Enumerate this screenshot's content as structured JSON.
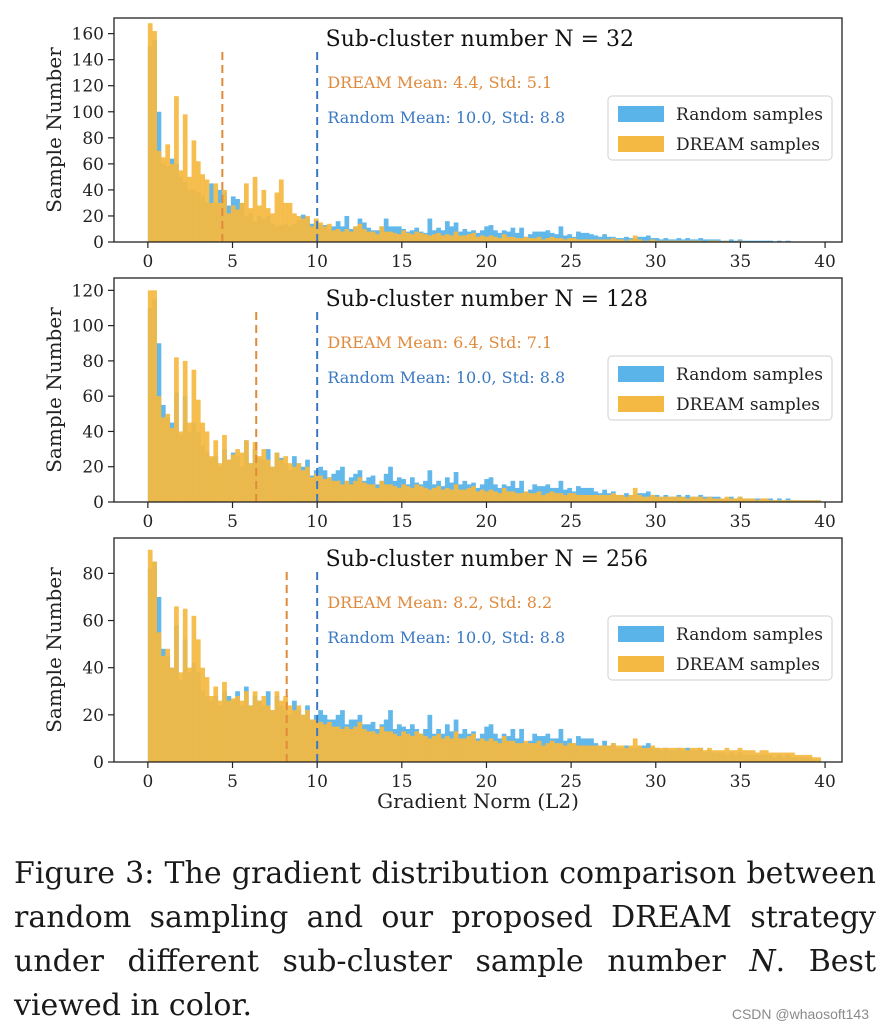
{
  "chart_data": [
    {
      "type": "bar",
      "title": "Sub-cluster number N = 32",
      "ylabel": "Sample Number",
      "xlabel": "",
      "xlim": [
        -2,
        41
      ],
      "ylim": [
        0,
        172
      ],
      "yticks": [
        0,
        20,
        40,
        60,
        80,
        100,
        120,
        140,
        160
      ],
      "xticks": [
        0,
        5,
        10,
        15,
        20,
        25,
        30,
        35,
        40
      ],
      "legend": "right",
      "annotations": {
        "dream": "DREAM Mean: 4.4, Std: 5.1",
        "random": "Random Mean: 10.0, Std: 8.8"
      },
      "mean_lines": {
        "dream": 4.4,
        "random": 10.0
      },
      "series": [
        {
          "name": "Random samples",
          "values": [
            150,
            155,
            100,
            60,
            58,
            64,
            60,
            50,
            46,
            40,
            40,
            38,
            35,
            30,
            45,
            30,
            40,
            38,
            28,
            35,
            33,
            30,
            20,
            22,
            16,
            20,
            18,
            20,
            14,
            12,
            13,
            14,
            12,
            14,
            17,
            21,
            19,
            14,
            17,
            13,
            13,
            10,
            12,
            16,
            12,
            20,
            10,
            12,
            18,
            15,
            11,
            9,
            9,
            12,
            18,
            12,
            12,
            12,
            10,
            8,
            9,
            11,
            8,
            7,
            18,
            9,
            11,
            9,
            16,
            12,
            15,
            8,
            10,
            8,
            9,
            7,
            9,
            12,
            13,
            9,
            7,
            9,
            8,
            11,
            7,
            11,
            4,
            6,
            8,
            8,
            8,
            9,
            7,
            6,
            12,
            5,
            6,
            4,
            8,
            7,
            7,
            6,
            5,
            4,
            6,
            4,
            4,
            3,
            3,
            4,
            3,
            3,
            4,
            4,
            5,
            3,
            3,
            2,
            3,
            2,
            2,
            3,
            2,
            3,
            2,
            2,
            3,
            2,
            2,
            2,
            2,
            1,
            1,
            2,
            1,
            2,
            1,
            1,
            1,
            1,
            1,
            1,
            1,
            0,
            1,
            0,
            1,
            0,
            0,
            0,
            0,
            0,
            0,
            0,
            0
          ]
        },
        {
          "name": "DREAM samples",
          "values": [
            168,
            162,
            70,
            65,
            75,
            60,
            112,
            55,
            98,
            50,
            78,
            62,
            52,
            48,
            30,
            45,
            30,
            40,
            22,
            28,
            25,
            30,
            45,
            26,
            50,
            28,
            40,
            26,
            22,
            38,
            48,
            30,
            30,
            22,
            20,
            18,
            20,
            12,
            18,
            15,
            12,
            14,
            9,
            10,
            8,
            10,
            8,
            12,
            14,
            10,
            8,
            8,
            6,
            12,
            8,
            8,
            7,
            6,
            9,
            7,
            6,
            8,
            7,
            6,
            5,
            6,
            7,
            5,
            6,
            5,
            8,
            5,
            5,
            6,
            7,
            4,
            5,
            4,
            5,
            4,
            3,
            6,
            4,
            4,
            3,
            3,
            4,
            3,
            3,
            4,
            2,
            3,
            4,
            3,
            3,
            2,
            3,
            3,
            2,
            2,
            2,
            2,
            2,
            2,
            2,
            2,
            3,
            2,
            2,
            1,
            2,
            5,
            2,
            1,
            1,
            2,
            1,
            1,
            1,
            1,
            1,
            1,
            1,
            1,
            1,
            1,
            1,
            0,
            1,
            1,
            1,
            0,
            1,
            0,
            0,
            1,
            0,
            0,
            0,
            0,
            0,
            0,
            0,
            0,
            0,
            0,
            0,
            0,
            0,
            0,
            0,
            0,
            0,
            0,
            0
          ]
        }
      ]
    },
    {
      "type": "bar",
      "title": "Sub-cluster number N = 128",
      "ylabel": "Sample Number",
      "xlabel": "",
      "xlim": [
        -2,
        41
      ],
      "ylim": [
        0,
        127
      ],
      "yticks": [
        0,
        20,
        40,
        60,
        80,
        100,
        120
      ],
      "xticks": [
        0,
        5,
        10,
        15,
        20,
        25,
        30,
        35,
        40
      ],
      "legend": "right",
      "annotations": {
        "dream": "DREAM Mean: 6.4, Std: 7.1",
        "random": "Random Mean: 10.0, Std: 8.8"
      },
      "mean_lines": {
        "dream": 6.4,
        "random": 10.0
      },
      "series": [
        {
          "name": "Random samples",
          "values": [
            110,
            115,
            90,
            55,
            48,
            45,
            62,
            38,
            60,
            40,
            45,
            40,
            32,
            28,
            25,
            26,
            20,
            30,
            24,
            28,
            26,
            20,
            35,
            22,
            30,
            25,
            24,
            30,
            20,
            28,
            25,
            22,
            18,
            26,
            22,
            20,
            24,
            15,
            18,
            20,
            18,
            14,
            16,
            18,
            20,
            12,
            14,
            16,
            18,
            12,
            14,
            15,
            10,
            12,
            16,
            20,
            12,
            14,
            13,
            10,
            14,
            11,
            10,
            12,
            18,
            10,
            12,
            9,
            14,
            11,
            17,
            10,
            12,
            10,
            11,
            8,
            10,
            13,
            14,
            10,
            8,
            10,
            9,
            12,
            8,
            12,
            6,
            7,
            10,
            9,
            9,
            10,
            8,
            8,
            12,
            7,
            8,
            6,
            9,
            8,
            8,
            8,
            6,
            5,
            7,
            5,
            6,
            4,
            4,
            5,
            4,
            4,
            5,
            5,
            6,
            4,
            4,
            3,
            4,
            3,
            3,
            4,
            3,
            4,
            3,
            3,
            4,
            3,
            3,
            3,
            3,
            2,
            2,
            3,
            2,
            3,
            2,
            2,
            2,
            2,
            2,
            2,
            2,
            1,
            2,
            1,
            2,
            1,
            1,
            1,
            1,
            1,
            1,
            1,
            0
          ]
        },
        {
          "name": "DREAM samples",
          "values": [
            120,
            120,
            60,
            48,
            50,
            42,
            82,
            40,
            80,
            45,
            75,
            58,
            45,
            40,
            26,
            35,
            22,
            38,
            24,
            27,
            30,
            28,
            35,
            22,
            34,
            26,
            30,
            24,
            20,
            28,
            24,
            26,
            22,
            20,
            22,
            18,
            20,
            14,
            16,
            15,
            13,
            14,
            12,
            12,
            10,
            12,
            10,
            12,
            14,
            11,
            10,
            10,
            8,
            12,
            10,
            10,
            9,
            8,
            10,
            9,
            8,
            10,
            9,
            8,
            7,
            8,
            9,
            7,
            8,
            7,
            10,
            7,
            7,
            8,
            9,
            6,
            7,
            6,
            7,
            6,
            5,
            8,
            6,
            6,
            5,
            5,
            6,
            5,
            5,
            6,
            4,
            5,
            6,
            5,
            5,
            4,
            5,
            5,
            4,
            4,
            4,
            4,
            4,
            4,
            4,
            4,
            5,
            4,
            4,
            3,
            4,
            8,
            4,
            3,
            3,
            4,
            3,
            3,
            3,
            3,
            3,
            3,
            3,
            2,
            3,
            3,
            3,
            2,
            3,
            2,
            2,
            2,
            3,
            2,
            2,
            3,
            2,
            2,
            2,
            1,
            2,
            2,
            1,
            1,
            1,
            1,
            1,
            1,
            1,
            1,
            1,
            1,
            1,
            1,
            0
          ]
        }
      ]
    },
    {
      "type": "bar",
      "title": "Sub-cluster number N = 256",
      "ylabel": "Sample Number",
      "xlabel": "Gradient Norm (L2)",
      "xlim": [
        -2,
        41
      ],
      "ylim": [
        0,
        95
      ],
      "yticks": [
        0,
        20,
        40,
        60,
        80
      ],
      "xticks": [
        0,
        5,
        10,
        15,
        20,
        25,
        30,
        35,
        40
      ],
      "legend": "right",
      "annotations": {
        "dream": "DREAM Mean: 8.2, Std: 8.2",
        "random": "Random Mean: 10.0, Std: 8.8"
      },
      "mean_lines": {
        "dream": 8.2,
        "random": 10.0
      },
      "series": [
        {
          "name": "Random samples",
          "values": [
            82,
            85,
            70,
            48,
            45,
            40,
            58,
            35,
            52,
            38,
            42,
            38,
            30,
            28,
            26,
            28,
            24,
            30,
            28,
            26,
            30,
            24,
            32,
            24,
            28,
            26,
            24,
            30,
            22,
            28,
            24,
            22,
            20,
            26,
            22,
            20,
            24,
            18,
            20,
            22,
            20,
            18,
            18,
            20,
            22,
            16,
            18,
            18,
            20,
            16,
            16,
            17,
            14,
            16,
            18,
            22,
            14,
            16,
            15,
            14,
            16,
            14,
            12,
            14,
            20,
            12,
            14,
            12,
            16,
            13,
            18,
            12,
            14,
            12,
            13,
            10,
            12,
            15,
            16,
            12,
            10,
            12,
            11,
            14,
            10,
            14,
            8,
            9,
            12,
            11,
            11,
            12,
            10,
            10,
            14,
            9,
            10,
            8,
            11,
            10,
            10,
            10,
            8,
            7,
            9,
            7,
            8,
            6,
            6,
            7,
            6,
            6,
            7,
            7,
            8,
            6,
            6,
            5,
            6,
            5,
            5,
            6,
            5,
            6,
            5,
            5,
            6,
            4,
            5,
            4,
            4,
            4,
            3,
            4,
            3,
            4,
            3,
            3,
            3,
            3,
            3,
            3,
            3,
            2,
            3,
            2,
            3,
            2,
            2,
            2,
            2,
            2,
            1,
            1,
            0
          ]
        },
        {
          "name": "DREAM samples",
          "values": [
            90,
            85,
            55,
            45,
            48,
            40,
            66,
            38,
            65,
            40,
            62,
            52,
            40,
            36,
            28,
            32,
            26,
            34,
            26,
            27,
            28,
            26,
            30,
            24,
            30,
            26,
            28,
            24,
            22,
            30,
            26,
            28,
            24,
            22,
            24,
            20,
            22,
            18,
            18,
            17,
            16,
            17,
            15,
            15,
            14,
            15,
            14,
            15,
            17,
            14,
            13,
            13,
            12,
            15,
            13,
            13,
            12,
            11,
            13,
            12,
            11,
            13,
            12,
            11,
            10,
            11,
            12,
            10,
            11,
            10,
            13,
            10,
            10,
            11,
            12,
            9,
            10,
            9,
            10,
            9,
            8,
            11,
            9,
            9,
            8,
            8,
            9,
            8,
            8,
            9,
            7,
            8,
            9,
            8,
            8,
            7,
            8,
            8,
            7,
            7,
            7,
            7,
            7,
            7,
            7,
            7,
            8,
            7,
            7,
            6,
            7,
            10,
            7,
            6,
            6,
            7,
            6,
            6,
            6,
            6,
            6,
            6,
            6,
            5,
            6,
            6,
            6,
            5,
            6,
            5,
            5,
            5,
            6,
            5,
            5,
            6,
            5,
            5,
            5,
            4,
            5,
            5,
            4,
            4,
            4,
            4,
            4,
            4,
            3,
            3,
            3,
            3,
            2,
            2,
            0
          ]
        }
      ]
    }
  ],
  "colors": {
    "random": "#5ab4ea",
    "dream": "#f4b942",
    "random_text": "#3a78c3",
    "dream_text": "#e08a3c"
  },
  "caption": {
    "prefix": "Figure 3:  The gradient distribution comparison between random sampling and our proposed DREAM strategy under different sub-cluster sample number ",
    "math": "N",
    "suffix": ". Best viewed in color."
  },
  "watermark": "CSDN @whaosoft143"
}
